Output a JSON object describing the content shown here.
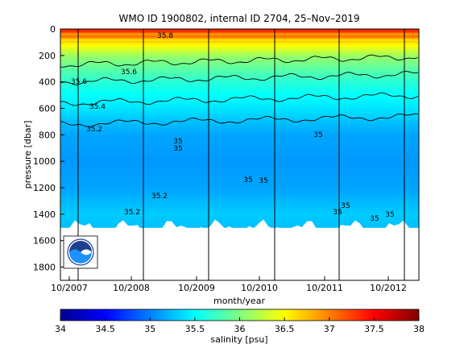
{
  "chart_data": {
    "type": "heatmap",
    "title": "WMO ID 1900802, internal ID 2704, 25–Nov–2019",
    "xlabel": "month/year",
    "ylabel": "pressure [dbar]",
    "x_ticks": [
      "10/2007",
      "10/2008",
      "10/2009",
      "10/2010",
      "10/2011",
      "10/2012"
    ],
    "y_ticks": [
      0,
      200,
      400,
      600,
      800,
      1000,
      1200,
      1400,
      1600,
      1800
    ],
    "ylim": [
      1900,
      0
    ],
    "colorbar": {
      "label": "salinity [psu]",
      "ticks": [
        "34",
        "34.5",
        "35",
        "35.5",
        "36",
        "36.5",
        "37",
        "37.5",
        "38"
      ],
      "range": [
        34,
        38
      ],
      "colormap": "jet"
    },
    "salinity_profile": {
      "pressure": [
        0,
        100,
        200,
        300,
        400,
        500,
        600,
        700,
        800,
        1000,
        1200,
        1400,
        1500
      ],
      "salinity": [
        37.3,
        36.6,
        36.1,
        35.85,
        35.65,
        35.5,
        35.4,
        35.25,
        35.15,
        35.1,
        35.15,
        35.3,
        35.25
      ]
    },
    "data_bottom_pressure": 1500,
    "contours": [
      {
        "level": "35.8",
        "pressure": 270
      },
      {
        "level": "35.6",
        "pressure": 400
      },
      {
        "level": "35.4",
        "pressure": 560
      },
      {
        "level": "35.2",
        "pressure": 720
      }
    ],
    "contour_labels": [
      "35.8",
      "35.6",
      "35.6",
      "35.4",
      "35.2",
      "35",
      "35",
      "35",
      "35",
      "35",
      "35.2",
      "35.2",
      "35",
      "35",
      "35",
      "35"
    ],
    "vertical_markers": [
      "10/2007",
      "10/2008",
      "10/2009",
      "10/2010",
      "10/2011",
      "10/2012"
    ],
    "logo": "noaa-logo"
  }
}
